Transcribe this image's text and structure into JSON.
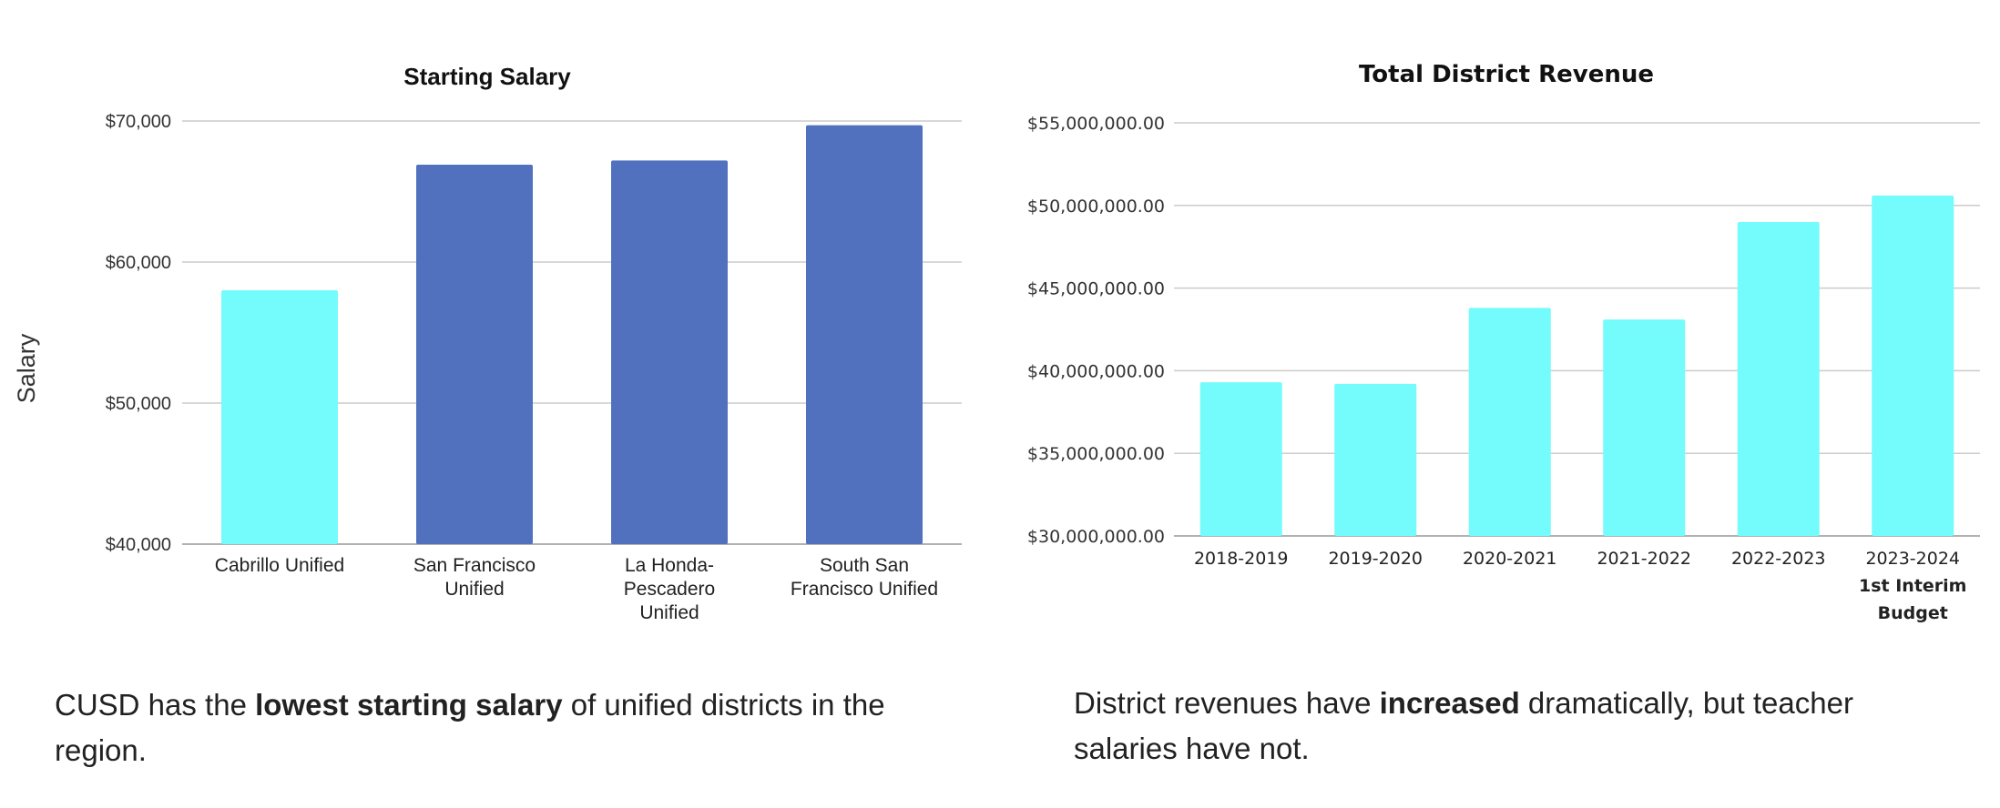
{
  "chart_data": [
    {
      "type": "bar",
      "title": "Starting Salary",
      "ylabel": "Salary",
      "xlabel": "",
      "categories": [
        "Cabrillo Unified",
        "San Francisco Unified",
        "La Honda-Pescadero Unified",
        "South San Francisco Unified"
      ],
      "category_lines": [
        [
          "Cabrillo Unified"
        ],
        [
          "San Francisco",
          "Unified"
        ],
        [
          "La Honda-",
          "Pescadero",
          "Unified"
        ],
        [
          "South San",
          "Francisco Unified"
        ]
      ],
      "values": [
        58000,
        66900,
        67200,
        69700
      ],
      "bar_colors": [
        "#74fbfb",
        "#5171bf",
        "#5171bf",
        "#5171bf"
      ],
      "ylim": [
        40000,
        70000
      ],
      "yticks": [
        40000,
        50000,
        60000,
        70000
      ],
      "ytick_labels": [
        "$40,000",
        "$50,000",
        "$60,000",
        "$70,000"
      ],
      "grid": true
    },
    {
      "type": "bar",
      "title": "Total District Revenue",
      "ylabel": "",
      "xlabel": "",
      "categories": [
        "2018-2019",
        "2019-2020",
        "2020-2021",
        "2021-2022",
        "2022-2023",
        "2023-2024 1st Interim Budget"
      ],
      "category_lines": [
        [
          "2018-2019"
        ],
        [
          "2019-2020"
        ],
        [
          "2020-2021"
        ],
        [
          "2021-2022"
        ],
        [
          "2022-2023"
        ],
        [
          "2023-2024",
          "1st Interim",
          "Budget"
        ]
      ],
      "values": [
        39300000,
        39200000,
        43800000,
        43100000,
        49000000,
        50600000
      ],
      "bar_colors": [
        "#74fbfb",
        "#74fbfb",
        "#74fbfb",
        "#74fbfb",
        "#74fbfb",
        "#74fbfb"
      ],
      "ylim": [
        30000000,
        55000000
      ],
      "yticks": [
        30000000,
        35000000,
        40000000,
        45000000,
        50000000,
        55000000
      ],
      "ytick_labels": [
        "$30,000,000.00",
        "$35,000,000.00",
        "$40,000,000.00",
        "$45,000,000.00",
        "$50,000,000.00",
        "$55,000,000.00"
      ],
      "grid": true
    }
  ],
  "captions": {
    "left": {
      "before": "CUSD has the ",
      "bold": "lowest starting salary",
      "after": " of unified districts in the region."
    },
    "right": {
      "before": "District revenues have ",
      "bold": "increased",
      "after": " dramatically, but teacher salaries have not."
    }
  },
  "colors": {
    "grid": "#cccccc",
    "axis": "#999999",
    "text": "#222222"
  }
}
